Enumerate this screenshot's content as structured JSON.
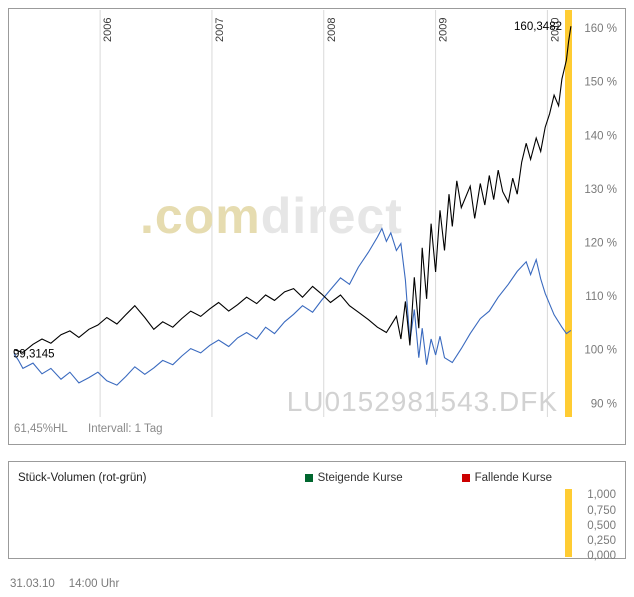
{
  "colors": {
    "panel_border": "#9b9b9b",
    "axis_text": "#7a7a7a",
    "gridline": "#d9d9d9",
    "highlight_bar": "#ffcc33",
    "series_black": "#000000",
    "series_blue": "#3a6abf",
    "rising_green": "#00662e",
    "falling_red": "#cc0000",
    "watermark_com": "#e6dcb0",
    "watermark_direct": "#e6e6e6",
    "watermark_instrument": "#d2d2d2"
  },
  "main_chart": {
    "start_value_label": "99,3145",
    "end_value_label": "160,3482",
    "watermark_brand_com": ".com",
    "watermark_brand_direct": "direct",
    "watermark_instrument": "LU0152981543.DFK",
    "footer_hl": "61,45%HL",
    "footer_interval": "Intervall: 1 Tag"
  },
  "volume_panel": {
    "label": "Stück-Volumen (rot-grün)",
    "legend": [
      {
        "label": "Steigende Kurse",
        "color": "#00662e"
      },
      {
        "label": "Fallende Kurse",
        "color": "#cc0000"
      }
    ],
    "y_labels": [
      "1,000",
      "0,750",
      "0,500",
      "0,250",
      "0,000"
    ]
  },
  "page_footer": {
    "date": "31.03.10",
    "time": "14:00 Uhr"
  },
  "chart_data": [
    {
      "type": "line",
      "title": "LU0152981543.DFK",
      "xlim": [
        2005.23,
        2010.22
      ],
      "ylim": [
        88,
        163
      ],
      "x_ticks": [
        2006,
        2007,
        2008,
        2009,
        2010
      ],
      "x_tick_labels": [
        "2006",
        "2007",
        "2008",
        "2009",
        "2010"
      ],
      "y_ticks": [
        90,
        100,
        110,
        120,
        130,
        140,
        150,
        160
      ],
      "y_tick_labels": [
        "90 %",
        "100 %",
        "110 %",
        "120 %",
        "130 %",
        "140 %",
        "150 %",
        "160 %"
      ],
      "grid": "vertical-years",
      "legend_position": "none",
      "highlight_span": {
        "position": "right-edge",
        "color": "#ffcc33"
      },
      "annotations": [
        "99,3145",
        "160,3482"
      ],
      "watermarks": [
        ".comdirect",
        "LU0152981543.DFK"
      ],
      "series": [
        {
          "name": "black-line",
          "color": "#000000",
          "end_label": "160,3482",
          "x": [
            2005.23,
            2005.31,
            2005.4,
            2005.48,
            2005.56,
            2005.65,
            2005.73,
            2005.81,
            2005.9,
            2005.98,
            2006.06,
            2006.15,
            2006.23,
            2006.31,
            2006.4,
            2006.48,
            2006.56,
            2006.65,
            2006.73,
            2006.81,
            2006.9,
            2006.98,
            2007.06,
            2007.15,
            2007.23,
            2007.31,
            2007.4,
            2007.48,
            2007.56,
            2007.65,
            2007.73,
            2007.81,
            2007.9,
            2007.98,
            2008.06,
            2008.15,
            2008.23,
            2008.31,
            2008.4,
            2008.48,
            2008.56,
            2008.65,
            2008.69,
            2008.73,
            2008.77,
            2008.81,
            2008.85,
            2008.88,
            2008.92,
            2008.96,
            2009.0,
            2009.04,
            2009.08,
            2009.12,
            2009.15,
            2009.19,
            2009.23,
            2009.31,
            2009.35,
            2009.4,
            2009.44,
            2009.48,
            2009.52,
            2009.56,
            2009.6,
            2009.65,
            2009.69,
            2009.73,
            2009.77,
            2009.81,
            2009.85,
            2009.9,
            2009.94,
            2009.98,
            2010.02,
            2010.06,
            2010.1,
            2010.13,
            2010.17,
            2010.19,
            2010.21
          ],
          "values": [
            100.0,
            99.5,
            101.0,
            102.0,
            101.2,
            102.8,
            103.5,
            102.3,
            103.8,
            104.6,
            106.0,
            104.8,
            106.5,
            108.2,
            106.0,
            103.8,
            105.2,
            104.2,
            105.8,
            107.2,
            106.2,
            107.6,
            108.8,
            107.2,
            108.4,
            109.8,
            108.6,
            110.2,
            109.2,
            110.8,
            111.4,
            109.8,
            111.8,
            110.4,
            108.8,
            110.2,
            108.2,
            107.0,
            105.6,
            104.2,
            103.2,
            106.2,
            102.0,
            109.0,
            100.8,
            113.5,
            104.0,
            119.0,
            109.5,
            123.5,
            114.5,
            126.0,
            118.5,
            129.0,
            123.0,
            131.5,
            126.5,
            130.5,
            124.5,
            131.0,
            127.0,
            132.5,
            128.0,
            133.5,
            129.5,
            127.5,
            132.0,
            129.0,
            135.0,
            138.5,
            135.5,
            139.5,
            137.0,
            141.5,
            144.0,
            147.5,
            145.5,
            150.5,
            154.0,
            157.5,
            160.35
          ]
        },
        {
          "name": "blue-line",
          "color": "#3a6abf",
          "start_label": "99,3145",
          "x": [
            2005.23,
            2005.27,
            2005.31,
            2005.4,
            2005.48,
            2005.56,
            2005.65,
            2005.73,
            2005.81,
            2005.9,
            2005.98,
            2006.06,
            2006.15,
            2006.23,
            2006.31,
            2006.4,
            2006.48,
            2006.56,
            2006.65,
            2006.73,
            2006.81,
            2006.9,
            2006.98,
            2007.06,
            2007.15,
            2007.23,
            2007.31,
            2007.4,
            2007.48,
            2007.56,
            2007.65,
            2007.73,
            2007.81,
            2007.9,
            2007.98,
            2008.06,
            2008.15,
            2008.23,
            2008.31,
            2008.4,
            2008.48,
            2008.52,
            2008.56,
            2008.6,
            2008.65,
            2008.69,
            2008.73,
            2008.77,
            2008.81,
            2008.85,
            2008.88,
            2008.92,
            2008.96,
            2009.0,
            2009.04,
            2009.08,
            2009.15,
            2009.23,
            2009.31,
            2009.4,
            2009.48,
            2009.56,
            2009.65,
            2009.73,
            2009.81,
            2009.85,
            2009.9,
            2009.94,
            2009.98,
            2010.06,
            2010.13,
            2010.17,
            2010.21
          ],
          "values": [
            99.3,
            98.0,
            96.5,
            97.5,
            95.5,
            96.5,
            94.5,
            95.8,
            93.8,
            94.8,
            95.8,
            94.2,
            93.4,
            95.0,
            96.8,
            95.4,
            96.6,
            98.0,
            97.2,
            98.8,
            100.2,
            99.4,
            100.8,
            101.8,
            100.6,
            102.2,
            103.2,
            102.0,
            104.2,
            103.0,
            105.2,
            106.6,
            108.2,
            107.0,
            109.2,
            111.2,
            113.4,
            112.2,
            115.4,
            118.2,
            121.0,
            122.6,
            120.2,
            121.8,
            118.5,
            119.8,
            113.0,
            101.5,
            107.5,
            98.5,
            104.0,
            97.2,
            102.0,
            99.0,
            102.5,
            98.5,
            97.6,
            100.2,
            103.0,
            105.8,
            107.2,
            109.8,
            112.2,
            114.6,
            116.4,
            114.0,
            116.8,
            113.2,
            110.5,
            106.5,
            104.2,
            103.0,
            103.6
          ]
        }
      ]
    },
    {
      "type": "bar",
      "title": "Stück-Volumen (rot-grün)",
      "ylim": [
        0,
        1
      ],
      "y_ticks": [
        1.0,
        0.75,
        0.5,
        0.25,
        0.0
      ],
      "y_tick_labels": [
        "1,000",
        "0,750",
        "0,500",
        "0,250",
        "0,000"
      ],
      "series": [
        {
          "name": "Steigende Kurse",
          "color": "#00662e",
          "values": []
        },
        {
          "name": "Fallende Kurse",
          "color": "#cc0000",
          "values": []
        }
      ]
    }
  ]
}
